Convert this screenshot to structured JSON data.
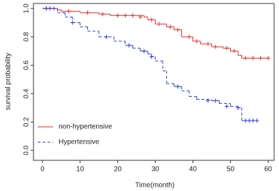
{
  "chart_data": {
    "type": "km",
    "x_label": "Time(month)",
    "y_label": "survival probability",
    "xlim": [
      -2.4,
      61.6
    ],
    "ylim": [
      -0.07,
      1.035
    ],
    "xticks": [
      0,
      10,
      20,
      30,
      40,
      50,
      60
    ],
    "yticks": [
      {
        "value": 0,
        "label": "0.0"
      },
      0.2,
      0.4,
      0.6,
      0.8,
      {
        "value": 1,
        "label": "1.0"
      }
    ],
    "legend": "bottom-left",
    "series": [
      {
        "name": "non-hypertensive",
        "color": "#ee2222",
        "dash": false,
        "x": [
          0,
          4,
          5,
          10,
          15,
          18,
          27,
          28,
          30,
          33,
          35,
          37,
          40,
          42,
          45,
          48,
          50,
          52,
          53,
          60
        ],
        "values": [
          1,
          0.99,
          0.98,
          0.97,
          0.96,
          0.95,
          0.94,
          0.92,
          0.89,
          0.87,
          0.85,
          0.8,
          0.77,
          0.75,
          0.73,
          0.72,
          0.7,
          0.67,
          0.65,
          0.65
        ],
        "censor_x": [
          1,
          3,
          7,
          12,
          16,
          20,
          22,
          24,
          26,
          29,
          31,
          34,
          36,
          39,
          41,
          44,
          46,
          49,
          51,
          54,
          56,
          58,
          60
        ],
        "censor_values": [
          1,
          1,
          0.98,
          0.97,
          0.96,
          0.95,
          0.95,
          0.95,
          0.94,
          0.92,
          0.89,
          0.87,
          0.85,
          0.8,
          0.77,
          0.75,
          0.73,
          0.72,
          0.7,
          0.65,
          0.65,
          0.65,
          0.65
        ]
      },
      {
        "name": "Hypertensive",
        "color": "#2233dd",
        "dash": true,
        "x": [
          0,
          3,
          4,
          6,
          8,
          10,
          12,
          15,
          19,
          22,
          24,
          26,
          28,
          29,
          30,
          32,
          33,
          35,
          37,
          39,
          41,
          45,
          47,
          50,
          52,
          53,
          57
        ],
        "values": [
          1,
          1,
          0.97,
          0.94,
          0.9,
          0.87,
          0.84,
          0.8,
          0.77,
          0.74,
          0.72,
          0.7,
          0.68,
          0.66,
          0.63,
          0.56,
          0.47,
          0.45,
          0.42,
          0.38,
          0.36,
          0.35,
          0.33,
          0.31,
          0.3,
          0.21,
          0.21
        ],
        "censor_x": [
          1,
          2,
          8,
          17,
          23,
          27,
          29,
          36,
          44,
          46,
          49,
          52,
          54,
          55,
          56,
          57
        ],
        "censor_values": [
          1,
          1,
          0.9,
          0.8,
          0.74,
          0.7,
          0.66,
          0.45,
          0.35,
          0.35,
          0.31,
          0.3,
          0.21,
          0.21,
          0.21,
          0.21
        ]
      }
    ]
  }
}
